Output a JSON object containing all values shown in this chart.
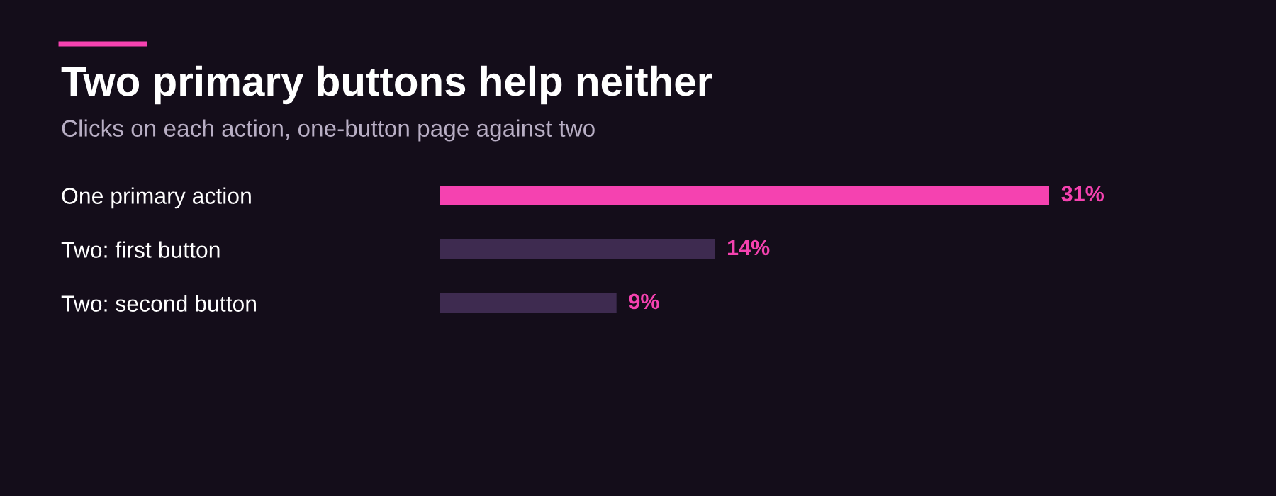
{
  "chart_data": {
    "type": "bar",
    "orientation": "horizontal",
    "title": "Two primary buttons help neither",
    "subtitle": "Clicks on each action, one-button page against two",
    "categories": [
      "One primary action",
      "Two: first button",
      "Two: second button"
    ],
    "values": [
      31,
      14,
      9
    ],
    "colors": [
      "#f542b0",
      "#3e2b50",
      "#3e2b50"
    ],
    "value_labels": [
      "31%",
      "14%",
      "9%"
    ],
    "grid": false
  }
}
